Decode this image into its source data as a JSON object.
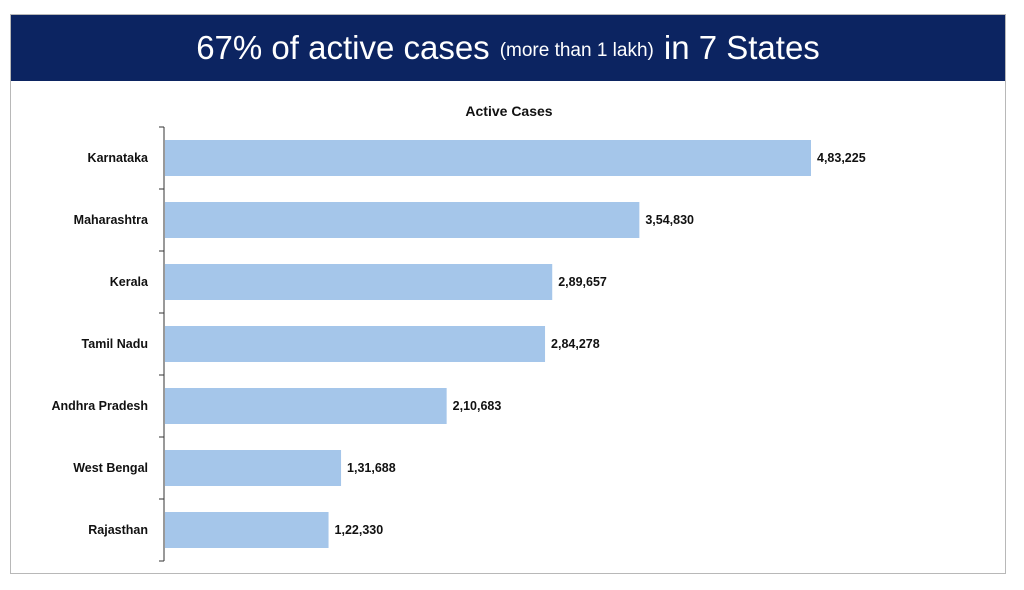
{
  "header": {
    "title_main": "67% of active cases",
    "title_note": "(more than 1 lakh)",
    "title_tail": "in 7 States",
    "bg_color": "#0c2461"
  },
  "chart_data": {
    "type": "bar",
    "orientation": "horizontal",
    "title": "Active Cases",
    "categories": [
      "Karnataka",
      "Maharashtra",
      "Kerala",
      "Tamil Nadu",
      "Andhra Pradesh",
      "West Bengal",
      "Rajasthan"
    ],
    "values": [
      483225,
      354830,
      289657,
      284278,
      210683,
      131688,
      122330
    ],
    "value_labels": [
      "4,83,225",
      "3,54,830",
      "2,89,657",
      "2,84,278",
      "2,10,683",
      "1,31,688",
      "1,22,330"
    ],
    "bar_color": "#a5c6ea",
    "grid": false,
    "legend": "none",
    "xlim": [
      0,
      483225
    ]
  }
}
